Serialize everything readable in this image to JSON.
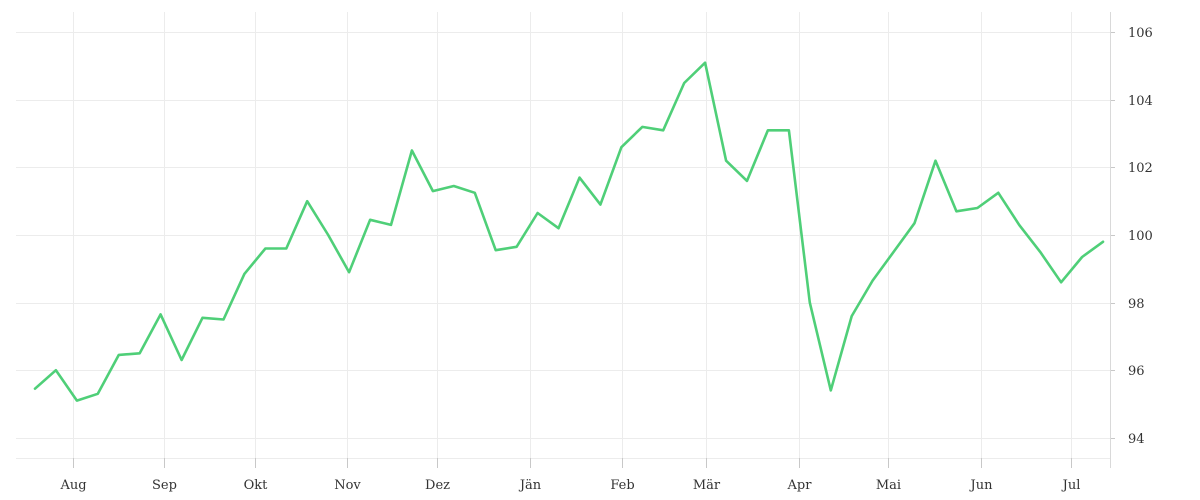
{
  "chart_data": {
    "type": "line",
    "title": "",
    "xlabel": "",
    "ylabel": "",
    "x_tick_labels": [
      "Aug",
      "Sep",
      "Okt",
      "Nov",
      "Dez",
      "Jän",
      "Feb",
      "Mär",
      "Apr",
      "Mai",
      "Jun",
      "Jul"
    ],
    "y_ticks": [
      94,
      96,
      98,
      100,
      102,
      104,
      106
    ],
    "ylim": [
      93.4,
      106.6
    ],
    "grid": true,
    "legend": "none",
    "colors": {
      "series": "#4fcf78"
    },
    "series": [
      {
        "values": [
          95.45,
          96.0,
          95.1,
          95.3,
          96.45,
          96.5,
          97.65,
          96.3,
          97.55,
          97.5,
          98.85,
          99.6,
          99.6,
          101.0,
          100.0,
          98.9,
          100.45,
          100.3,
          102.5,
          101.3,
          101.45,
          101.25,
          99.55,
          99.65,
          100.65,
          100.2,
          101.7,
          100.9,
          102.6,
          103.2,
          103.1,
          104.5,
          105.1,
          102.2,
          101.6,
          103.1,
          103.1,
          98.0,
          95.4,
          97.6,
          98.65,
          99.5,
          100.35,
          102.2,
          100.7,
          100.8,
          101.25,
          100.3,
          99.5,
          98.6,
          99.35,
          99.8
        ]
      }
    ]
  }
}
